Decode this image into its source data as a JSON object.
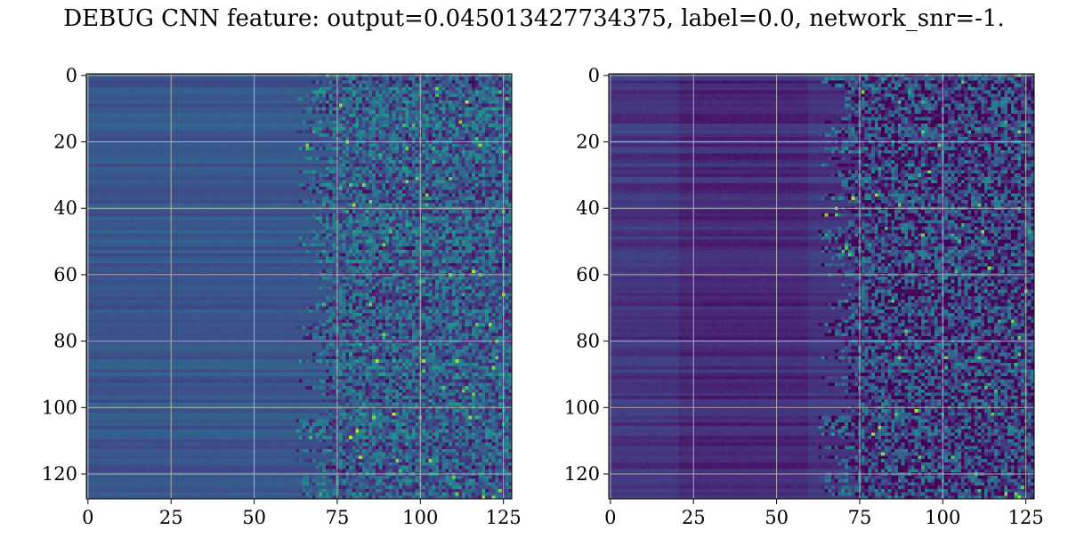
{
  "title": "DEBUG CNN feature: output=0.045013427734375, label=0.0, network_snr=-1.",
  "chart_data": [
    {
      "type": "heatmap",
      "colormap": "viridis",
      "shape": [
        128,
        128
      ],
      "grid": true,
      "xlim": [
        0,
        127
      ],
      "ylim": [
        127,
        0
      ],
      "xticks": [
        "0",
        "25",
        "50",
        "75",
        "100",
        "125"
      ],
      "yticks": [
        "0",
        "20",
        "40",
        "60",
        "80",
        "100",
        "120"
      ]
    },
    {
      "type": "heatmap",
      "colormap": "viridis",
      "shape": [
        128,
        128
      ],
      "grid": true,
      "xlim": [
        0,
        127
      ],
      "ylim": [
        127,
        0
      ],
      "xticks": [
        "0",
        "25",
        "50",
        "75",
        "100",
        "125"
      ],
      "yticks": [
        "0",
        "20",
        "40",
        "60",
        "80",
        "100",
        "120"
      ]
    }
  ]
}
